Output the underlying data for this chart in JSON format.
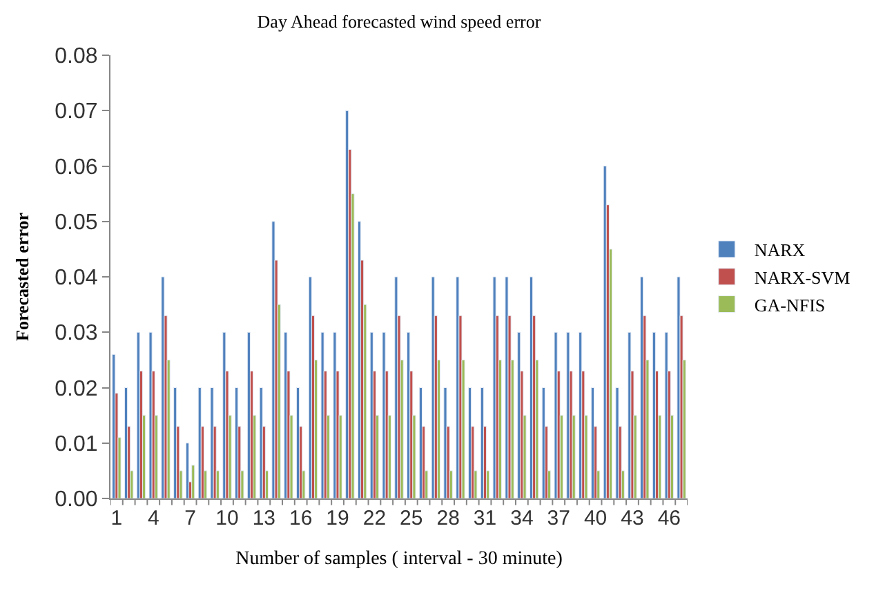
{
  "chart_data": {
    "type": "bar",
    "title": "Day Ahead forecasted wind speed error",
    "xlabel": "Number of samples ( interval - 30 minute)",
    "ylabel": "Forecasted error",
    "categories": [
      "1",
      null,
      null,
      "4",
      null,
      null,
      "7",
      null,
      null,
      "10",
      null,
      null,
      "13",
      null,
      null,
      "16",
      null,
      null,
      "19",
      null,
      null,
      "22",
      null,
      null,
      "25",
      null,
      null,
      "28",
      null,
      null,
      "31",
      null,
      null,
      "34",
      null,
      null,
      "37",
      null,
      null,
      "40",
      null,
      null,
      "43",
      null,
      null,
      "46",
      null
    ],
    "series": [
      {
        "name": "NARX",
        "color": "#4f81bd",
        "values": [
          0.026,
          0.02,
          0.03,
          0.03,
          0.04,
          0.02,
          0.01,
          0.02,
          0.02,
          0.03,
          0.02,
          0.03,
          0.02,
          0.05,
          0.03,
          0.02,
          0.04,
          0.03,
          0.03,
          0.07,
          0.05,
          0.03,
          0.03,
          0.04,
          0.03,
          0.02,
          0.04,
          0.02,
          0.04,
          0.02,
          0.02,
          0.04,
          0.04,
          0.03,
          0.04,
          0.02,
          0.03,
          0.03,
          0.03,
          0.02,
          0.06,
          0.02,
          0.03,
          0.04,
          0.03,
          0.03,
          0.04
        ]
      },
      {
        "name": "NARX-SVM",
        "color": "#c0504d",
        "values": [
          0.019,
          0.013,
          0.023,
          0.023,
          0.033,
          0.013,
          0.003,
          0.013,
          0.013,
          0.023,
          0.013,
          0.023,
          0.013,
          0.043,
          0.023,
          0.013,
          0.033,
          0.023,
          0.023,
          0.063,
          0.043,
          0.023,
          0.023,
          0.033,
          0.023,
          0.013,
          0.033,
          0.013,
          0.033,
          0.013,
          0.013,
          0.033,
          0.033,
          0.023,
          0.033,
          0.013,
          0.023,
          0.023,
          0.023,
          0.013,
          0.053,
          0.013,
          0.023,
          0.033,
          0.023,
          0.023,
          0.033
        ]
      },
      {
        "name": "GA-NFIS",
        "color": "#9bbb59",
        "values": [
          0.011,
          0.005,
          0.015,
          0.015,
          0.025,
          0.005,
          0.006,
          0.005,
          0.005,
          0.015,
          0.005,
          0.015,
          0.005,
          0.035,
          0.015,
          0.005,
          0.025,
          0.015,
          0.015,
          0.055,
          0.035,
          0.015,
          0.015,
          0.025,
          0.015,
          0.005,
          0.025,
          0.005,
          0.025,
          0.005,
          0.005,
          0.025,
          0.025,
          0.015,
          0.025,
          0.005,
          0.015,
          0.015,
          0.015,
          0.005,
          0.045,
          0.005,
          0.015,
          0.025,
          0.015,
          0.015,
          0.025
        ]
      }
    ],
    "ylim": [
      0,
      0.08
    ],
    "yticks": [
      {
        "value": 0,
        "label": "0.00"
      },
      {
        "value": 0.01,
        "label": "0.01"
      },
      {
        "value": 0.02,
        "label": "0.02"
      },
      {
        "value": 0.03,
        "label": "0.03"
      },
      {
        "value": 0.04,
        "label": "0.04"
      },
      {
        "value": 0.05,
        "label": "0.05"
      },
      {
        "value": 0.06,
        "label": "0.06"
      },
      {
        "value": 0.07,
        "label": "0.07"
      },
      {
        "value": 0.08,
        "label": "0.08"
      }
    ],
    "legend": "right"
  }
}
